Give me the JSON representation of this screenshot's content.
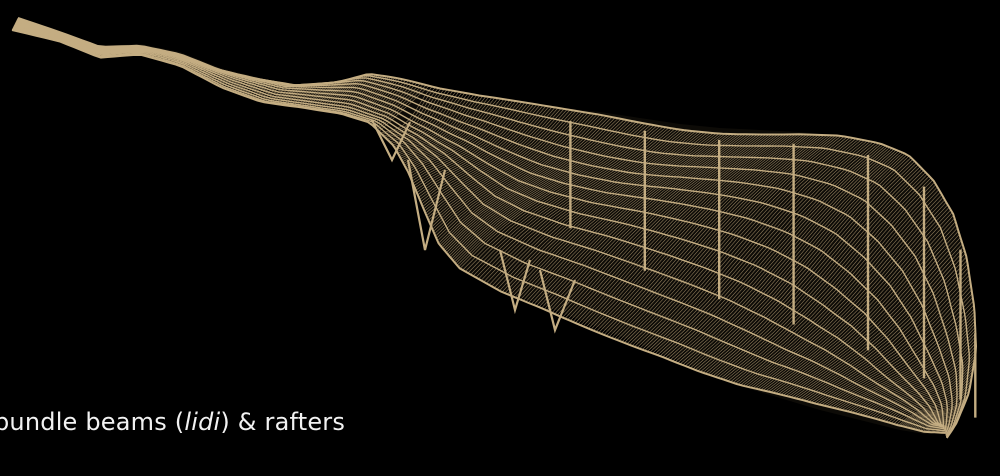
{
  "caption": {
    "before": "bundle beams (",
    "italic": "lidi",
    "after": ") & rafters"
  },
  "colors": {
    "background": "#000000",
    "wireframe": "#a38e68",
    "wireframe_light": "#c4ad82",
    "caption_text": "#f2f2f2"
  }
}
